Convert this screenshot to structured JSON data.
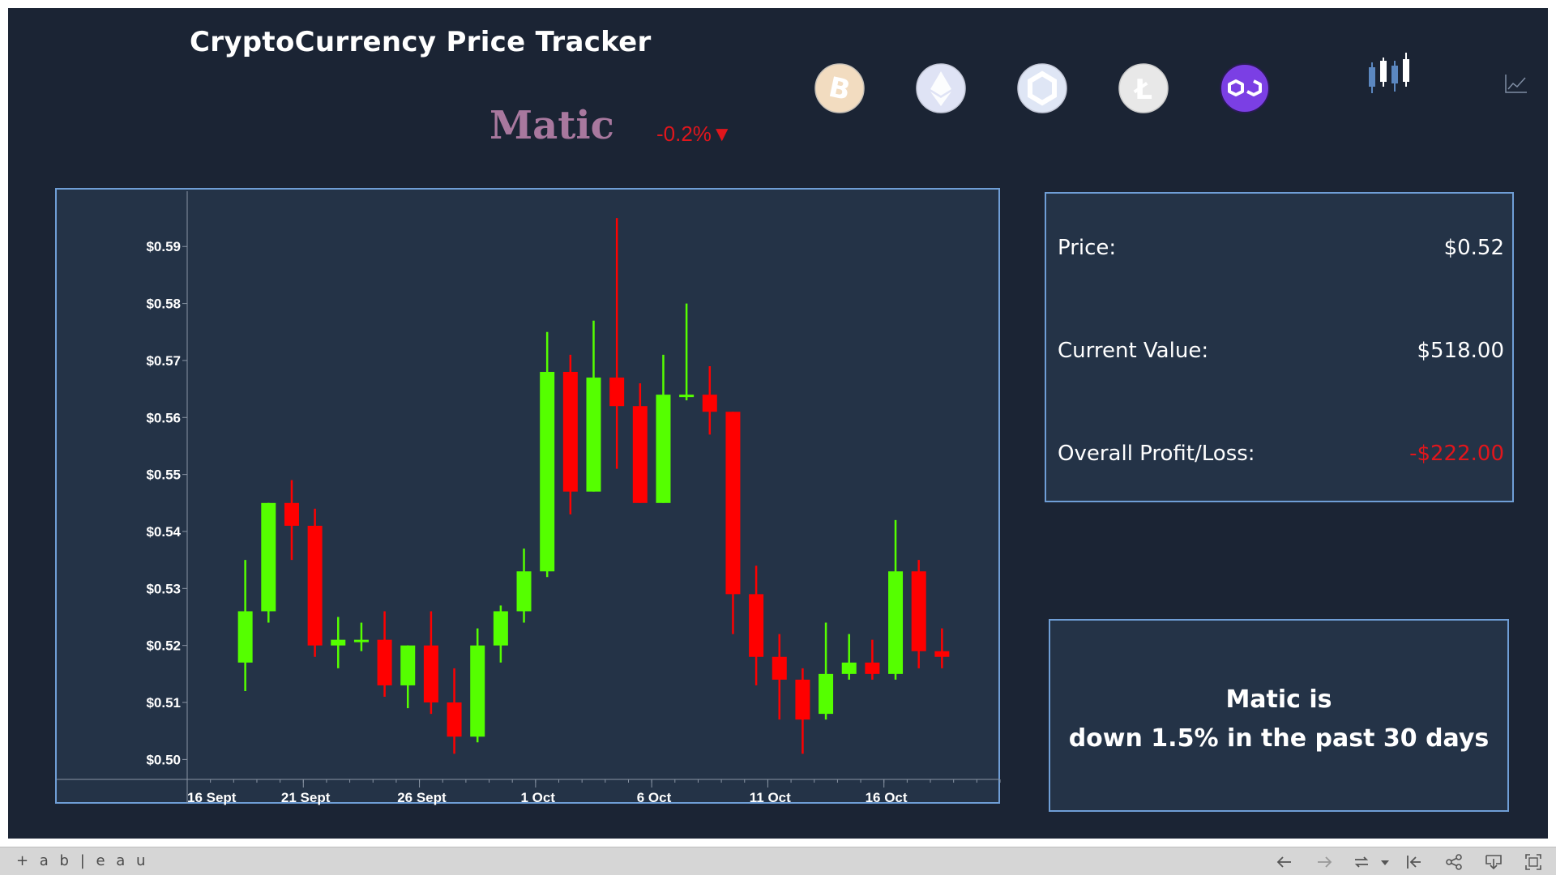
{
  "header": {
    "title": "CryptoCurrency Price Tracker",
    "coin_name": "Matic",
    "daily_change": "-0.2%▼"
  },
  "coin_selector": [
    {
      "icon": "bitcoin-icon",
      "color": "#f2dcc0"
    },
    {
      "icon": "ethereum-icon",
      "color": "#dfe3f5"
    },
    {
      "icon": "chainlink-icon",
      "color": "#dfe6f5"
    },
    {
      "icon": "litecoin-icon",
      "color": "#e8e8e8"
    },
    {
      "icon": "polygon-icon",
      "color": "#7b3fe4",
      "selected": true
    }
  ],
  "view_toggle": [
    "candlestick-chart-icon",
    "line-chart-icon"
  ],
  "stats": {
    "price_label": "Price:",
    "price_value": "$0.52",
    "current_value_label": "Current Value:",
    "current_value": "$518.00",
    "profit_loss_label": "Overall Profit/Loss:",
    "profit_loss_value": "-$222.00"
  },
  "summary": {
    "line1": "Matic is",
    "line2": "down 1.5% in the past 30 days"
  },
  "colors": {
    "background": "#1b2434",
    "panel": "#243347",
    "border": "#6f9ed6",
    "up": "#55ff00",
    "down": "#ff0000",
    "negative_text": "#e0161c"
  },
  "chart_data": {
    "type": "candlestick",
    "y_ticks": [
      "$0.50",
      "$0.51",
      "$0.52",
      "$0.53",
      "$0.54",
      "$0.55",
      "$0.56",
      "$0.57",
      "$0.58",
      "$0.59"
    ],
    "ylim": [
      0.4965,
      0.5997
    ],
    "x_ticks": [
      "16 Sept",
      "21 Sept",
      "26 Sept",
      "1 Oct",
      "6 Oct",
      "11 Oct",
      "16 Oct"
    ],
    "days": 35,
    "candles": [
      {
        "day": 2,
        "open": 0.517,
        "close": 0.526,
        "high": 0.535,
        "low": 0.512
      },
      {
        "day": 3,
        "open": 0.526,
        "close": 0.545,
        "high": 0.545,
        "low": 0.524
      },
      {
        "day": 4,
        "open": 0.545,
        "close": 0.541,
        "high": 0.549,
        "low": 0.535
      },
      {
        "day": 5,
        "open": 0.541,
        "close": 0.52,
        "high": 0.544,
        "low": 0.518
      },
      {
        "day": 6,
        "open": 0.52,
        "close": 0.521,
        "high": 0.525,
        "low": 0.516
      },
      {
        "day": 7,
        "open": 0.521,
        "close": 0.521,
        "high": 0.524,
        "low": 0.519
      },
      {
        "day": 8,
        "open": 0.521,
        "close": 0.513,
        "high": 0.526,
        "low": 0.511
      },
      {
        "day": 9,
        "open": 0.513,
        "close": 0.52,
        "high": 0.52,
        "low": 0.509
      },
      {
        "day": 10,
        "open": 0.52,
        "close": 0.51,
        "high": 0.526,
        "low": 0.508
      },
      {
        "day": 11,
        "open": 0.51,
        "close": 0.504,
        "high": 0.516,
        "low": 0.501
      },
      {
        "day": 12,
        "open": 0.504,
        "close": 0.52,
        "high": 0.523,
        "low": 0.503
      },
      {
        "day": 13,
        "open": 0.52,
        "close": 0.526,
        "high": 0.527,
        "low": 0.517
      },
      {
        "day": 14,
        "open": 0.526,
        "close": 0.533,
        "high": 0.537,
        "low": 0.524
      },
      {
        "day": 15,
        "open": 0.533,
        "close": 0.568,
        "high": 0.575,
        "low": 0.532
      },
      {
        "day": 16,
        "open": 0.568,
        "close": 0.547,
        "high": 0.571,
        "low": 0.543
      },
      {
        "day": 17,
        "open": 0.547,
        "close": 0.567,
        "high": 0.577,
        "low": 0.547
      },
      {
        "day": 18,
        "open": 0.567,
        "close": 0.562,
        "high": 0.595,
        "low": 0.551
      },
      {
        "day": 19,
        "open": 0.562,
        "close": 0.545,
        "high": 0.566,
        "low": 0.545
      },
      {
        "day": 20,
        "open": 0.545,
        "close": 0.564,
        "high": 0.571,
        "low": 0.545
      },
      {
        "day": 21,
        "open": 0.564,
        "close": 0.564,
        "high": 0.58,
        "low": 0.563
      },
      {
        "day": 22,
        "open": 0.564,
        "close": 0.561,
        "high": 0.569,
        "low": 0.557
      },
      {
        "day": 23,
        "open": 0.561,
        "close": 0.529,
        "high": 0.561,
        "low": 0.522
      },
      {
        "day": 24,
        "open": 0.529,
        "close": 0.518,
        "high": 0.534,
        "low": 0.513
      },
      {
        "day": 25,
        "open": 0.518,
        "close": 0.514,
        "high": 0.522,
        "low": 0.507
      },
      {
        "day": 26,
        "open": 0.514,
        "close": 0.507,
        "high": 0.516,
        "low": 0.501
      },
      {
        "day": 27,
        "open": 0.508,
        "close": 0.515,
        "high": 0.524,
        "low": 0.507
      },
      {
        "day": 28,
        "open": 0.515,
        "close": 0.517,
        "high": 0.522,
        "low": 0.514
      },
      {
        "day": 29,
        "open": 0.517,
        "close": 0.515,
        "high": 0.521,
        "low": 0.514
      },
      {
        "day": 30,
        "open": 0.515,
        "close": 0.533,
        "high": 0.542,
        "low": 0.514
      },
      {
        "day": 31,
        "open": 0.533,
        "close": 0.519,
        "high": 0.535,
        "low": 0.516
      },
      {
        "day": 32,
        "open": 0.519,
        "close": 0.518,
        "high": 0.523,
        "low": 0.516
      }
    ]
  },
  "toolbar": {
    "logo_text": "+ a b | e a u",
    "icons": [
      "undo-icon",
      "redo-icon",
      "revert-icon",
      "dropdown-icon",
      "reset-icon",
      "share-icon",
      "download-icon",
      "fullscreen-icon"
    ]
  }
}
